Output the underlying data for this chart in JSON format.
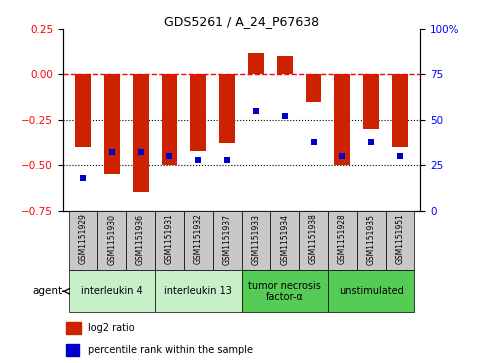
{
  "title": "GDS5261 / A_24_P67638",
  "samples": [
    "GSM1151929",
    "GSM1151930",
    "GSM1151936",
    "GSM1151931",
    "GSM1151932",
    "GSM1151937",
    "GSM1151933",
    "GSM1151934",
    "GSM1151938",
    "GSM1151928",
    "GSM1151935",
    "GSM1151951"
  ],
  "log2_ratio": [
    -0.4,
    -0.55,
    -0.65,
    -0.5,
    -0.42,
    -0.38,
    0.12,
    0.1,
    -0.15,
    -0.5,
    -0.3,
    -0.4
  ],
  "percentile_rank": [
    18,
    32,
    32,
    30,
    28,
    28,
    55,
    52,
    38,
    30,
    38,
    30
  ],
  "groups": [
    {
      "label": "interleukin 4",
      "indices": [
        0,
        1,
        2
      ],
      "color": "#c8f0c8"
    },
    {
      "label": "interleukin 13",
      "indices": [
        3,
        4,
        5
      ],
      "color": "#c8f0c8"
    },
    {
      "label": "tumor necrosis\nfactor-α",
      "indices": [
        6,
        7,
        8
      ],
      "color": "#55cc55"
    },
    {
      "label": "unstimulated",
      "indices": [
        9,
        10,
        11
      ],
      "color": "#55cc55"
    }
  ],
  "bar_color": "#cc2200",
  "point_color": "#0000cc",
  "ylim_left": [
    -0.75,
    0.25
  ],
  "ylim_right": [
    0,
    100
  ],
  "yticks_left": [
    -0.75,
    -0.5,
    -0.25,
    0,
    0.25
  ],
  "yticks_right": [
    0,
    25,
    50,
    75,
    100
  ],
  "dotted_hlines": [
    -0.25,
    -0.5
  ],
  "background_color": "#ffffff",
  "agent_label": "agent",
  "legend_log2": "log2 ratio",
  "legend_pct": "percentile rank within the sample",
  "bar_width": 0.55,
  "gray_color": "#c8c8c8"
}
